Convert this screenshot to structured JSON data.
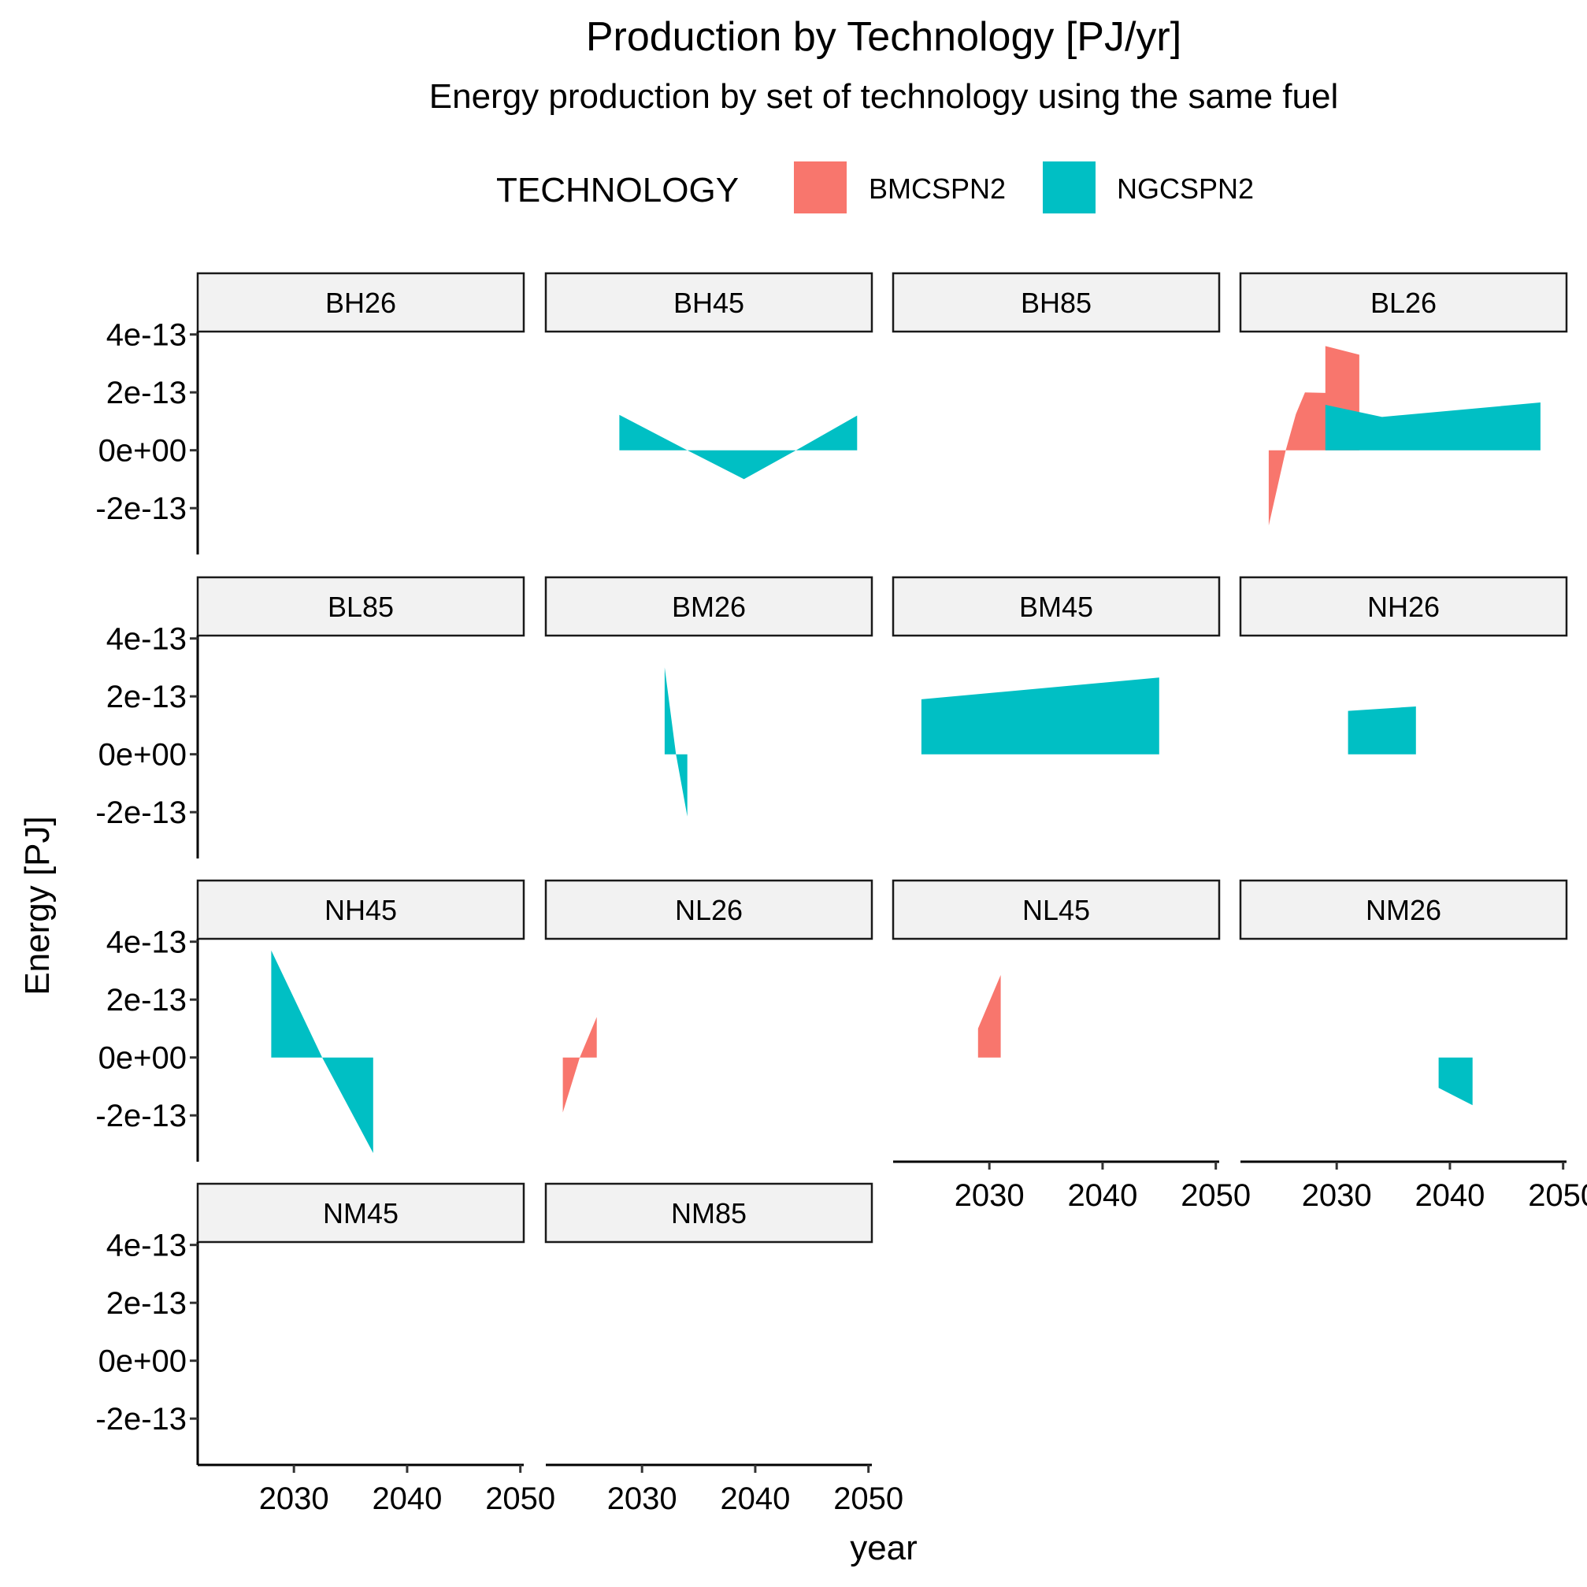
{
  "chart_data": {
    "type": "area",
    "title": "Production by Technology [PJ/yr]",
    "subtitle": "Energy production by set of technology using the same fuel",
    "xlabel": "year",
    "ylabel": "Energy [PJ]",
    "x_ticks": [
      2030,
      2040,
      2050
    ],
    "x_tick_labels": [
      "2030",
      "2040",
      "2050"
    ],
    "xlim": [
      2021.5,
      2050.3
    ],
    "y_ticks": [
      -2e-13,
      0,
      2e-13,
      4e-13
    ],
    "y_tick_labels": [
      "-2e-13",
      "0e+00",
      "2e-13",
      "4e-13"
    ],
    "ylim": [
      -3.6e-13,
      4.1e-13
    ],
    "grid": false,
    "legend": {
      "title": "TECHNOLOGY",
      "position": "top",
      "entries": [
        {
          "name": "BMCSPN2",
          "color": "#F8766D"
        },
        {
          "name": "NGCSPN2",
          "color": "#00BFC4"
        }
      ]
    },
    "panels": [
      {
        "label": "BH26",
        "series": []
      },
      {
        "label": "BH45",
        "series": [
          {
            "name": "NGCSPN2",
            "x": [
              2028,
              2034,
              2039,
              2043.6,
              2049
            ],
            "y": [
              1.22e-13,
              0,
              -1e-13,
              0,
              1.2e-13
            ]
          }
        ]
      },
      {
        "label": "BH85",
        "series": []
      },
      {
        "label": "BL26",
        "series": [
          {
            "name": "BMCSPN2",
            "x": [
              2024,
              2025.5,
              2026.4,
              2027.2,
              2029,
              2029,
              2032
            ],
            "y": [
              -2.6e-13,
              0,
              1.25e-13,
              2e-13,
              1.98e-13,
              3.6e-13,
              3.3e-13
            ]
          },
          {
            "name": "NGCSPN2",
            "x": [
              2029,
              2034,
              2048
            ],
            "y": [
              1.57e-13,
              1.15e-13,
              1.65e-13
            ]
          }
        ]
      },
      {
        "label": "BL85",
        "series": []
      },
      {
        "label": "BM26",
        "series": [
          {
            "name": "NGCSPN2",
            "x": [
              2032,
              2033,
              2033,
              2034
            ],
            "y": [
              3e-13,
              0,
              0,
              -2.15e-13
            ]
          }
        ]
      },
      {
        "label": "BM45",
        "series": [
          {
            "name": "NGCSPN2",
            "x": [
              2024,
              2045
            ],
            "y": [
              1.9e-13,
              2.65e-13
            ]
          }
        ]
      },
      {
        "label": "NH26",
        "series": [
          {
            "name": "NGCSPN2",
            "x": [
              2031,
              2037
            ],
            "y": [
              1.5e-13,
              1.65e-13
            ]
          }
        ]
      },
      {
        "label": "NH45",
        "series": [
          {
            "name": "NGCSPN2",
            "x": [
              2028,
              2032.5,
              2037
            ],
            "y": [
              3.7e-13,
              0,
              -3.3e-13
            ]
          }
        ]
      },
      {
        "label": "NL26",
        "series": [
          {
            "name": "BMCSPN2",
            "x": [
              2023,
              2024.5,
              2026
            ],
            "y": [
              -1.9e-13,
              0,
              1.4e-13
            ]
          }
        ]
      },
      {
        "label": "NL45",
        "series": [
          {
            "name": "BMCSPN2",
            "x": [
              2029,
              2031
            ],
            "y": [
              1e-13,
              2.85e-13
            ]
          }
        ]
      },
      {
        "label": "NM26",
        "series": [
          {
            "name": "NGCSPN2",
            "x": [
              2039,
              2042
            ],
            "y": [
              -1.05e-13,
              -1.65e-13
            ]
          }
        ]
      },
      {
        "label": "NM45",
        "series": []
      },
      {
        "label": "NM85",
        "series": []
      }
    ]
  }
}
